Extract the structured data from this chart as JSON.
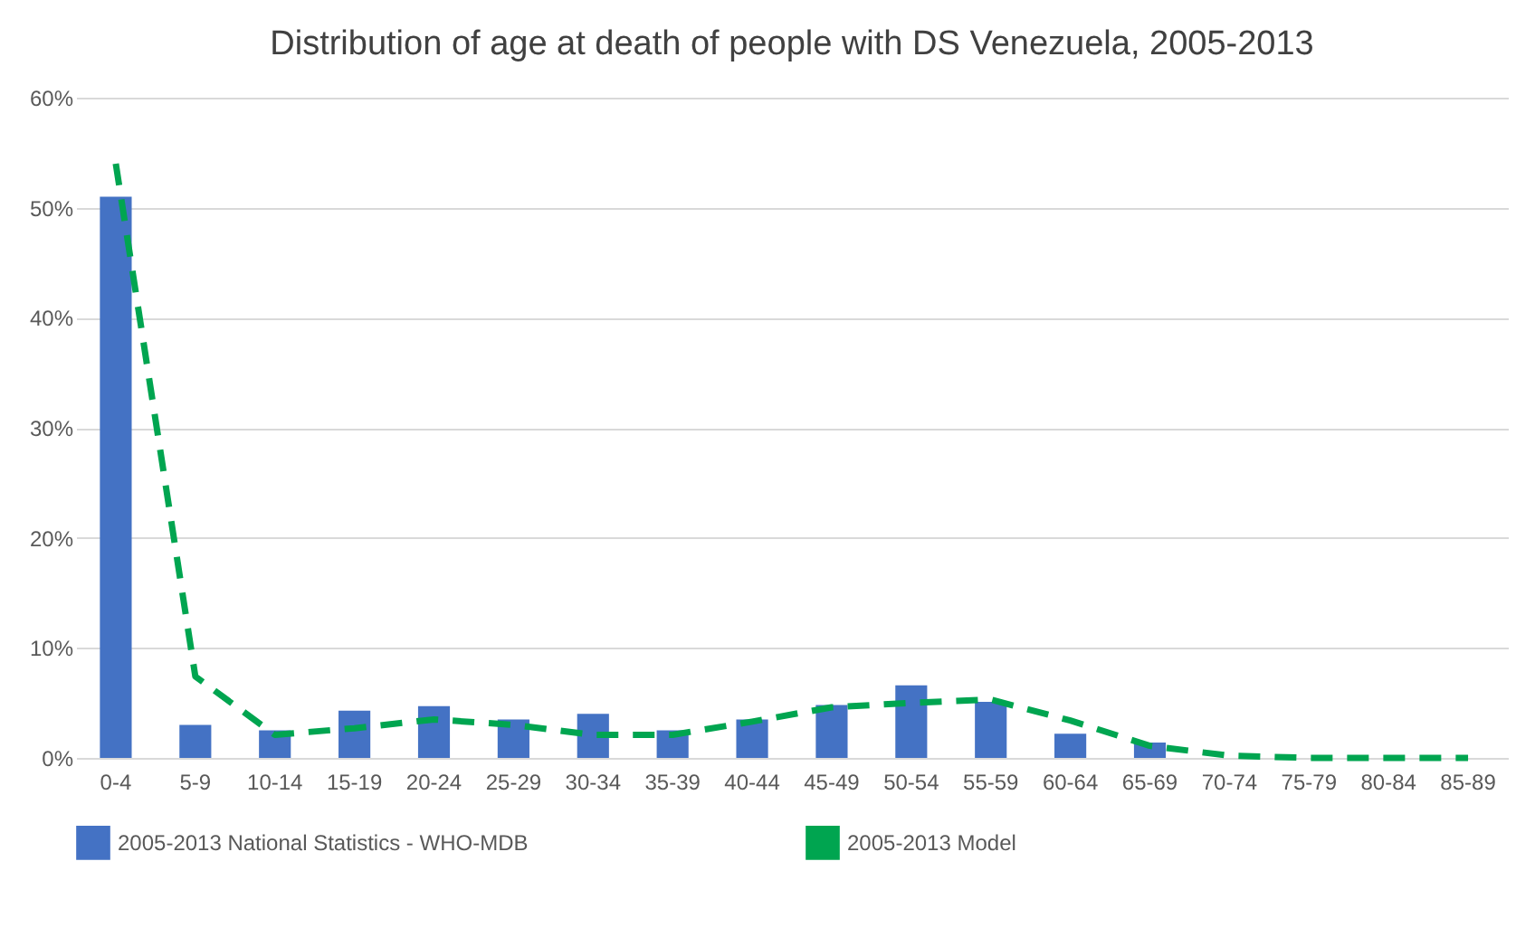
{
  "chart_data": {
    "type": "bar",
    "title": "Distribution of age at death of people with DS Venezuela, 2005-2013",
    "categories": [
      "0-4",
      "5-9",
      "10-14",
      "15-19",
      "20-24",
      "25-29",
      "30-34",
      "35-39",
      "40-44",
      "45-49",
      "50-54",
      "55-59",
      "60-64",
      "65-69",
      "70-74",
      "75-79",
      "80-84",
      "85-89"
    ],
    "series": [
      {
        "name": "2005-2013 National Statistics - WHO-MDB",
        "color": "#4472c4",
        "values": [
          51,
          3,
          2.5,
          4.3,
          4.7,
          3.5,
          4,
          2.5,
          3.5,
          4.8,
          6.6,
          5.1,
          2.2,
          1.4,
          0,
          0,
          0,
          0
        ]
      },
      {
        "name": "2005-2013 Model",
        "type": "line",
        "color": "#00a550",
        "line_style": "dashed",
        "values": [
          54,
          7.4,
          2.1,
          2.7,
          3.5,
          3,
          2.1,
          2.1,
          3.3,
          4.6,
          5,
          5.3,
          3.4,
          1.1,
          0.2,
          0,
          0,
          0
        ]
      }
    ],
    "ylim": [
      0,
      60
    ],
    "yticks": [
      {
        "value": 0,
        "label": "0%"
      },
      {
        "value": 10,
        "label": "10%"
      },
      {
        "value": 20,
        "label": "20%"
      },
      {
        "value": 30,
        "label": "30%"
      },
      {
        "value": 40,
        "label": "40%"
      },
      {
        "value": 50,
        "label": "50%"
      },
      {
        "value": 60,
        "label": "60%"
      }
    ],
    "grid": "y",
    "legend": "bottom"
  }
}
